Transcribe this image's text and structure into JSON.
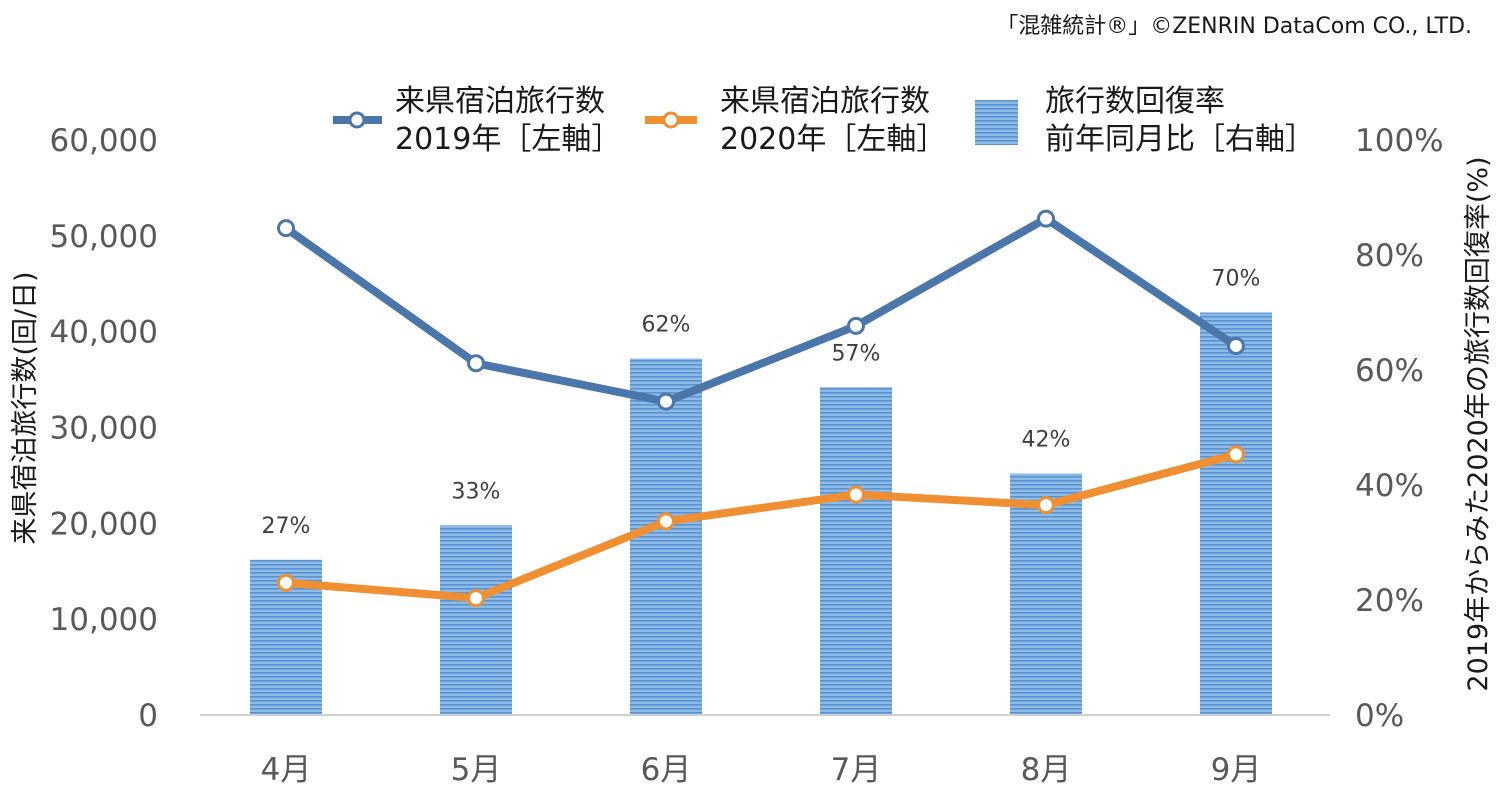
{
  "source": "「混雑統計®」©ZENRIN DataCom CO., LTD.",
  "chart_data": {
    "type": "bar+line",
    "categories": [
      "4月",
      "5月",
      "6月",
      "7月",
      "8月",
      "9月"
    ],
    "series": [
      {
        "name_lines": [
          "来県宿泊旅行数",
          "2019年［左軸］"
        ],
        "kind": "line",
        "axis": "left",
        "color": "#4a76aa",
        "values": [
          50800,
          36700,
          32700,
          40600,
          51800,
          38500
        ]
      },
      {
        "name_lines": [
          "来県宿泊旅行数",
          "2020年［左軸］"
        ],
        "kind": "line",
        "axis": "left",
        "color": "#f08f31",
        "values": [
          13800,
          12200,
          20200,
          23000,
          21900,
          27200
        ]
      },
      {
        "name_lines": [
          "旅行数回復率",
          "前年同月比［右軸］"
        ],
        "kind": "bar",
        "axis": "right",
        "color": "#6fa3d8",
        "values": [
          27,
          33,
          62,
          57,
          42,
          70
        ],
        "labels": [
          "27%",
          "33%",
          "62%",
          "57%",
          "42%",
          "70%"
        ]
      }
    ],
    "left_axis": {
      "label": "来県宿泊旅行数(回/日)",
      "ylim": [
        0,
        60000
      ],
      "ticks": [
        "0",
        "10,000",
        "20,000",
        "30,000",
        "40,000",
        "50,000",
        "60,000"
      ]
    },
    "right_axis": {
      "label": "2019年からみた2020年の旅行数回復率(%)",
      "ylim": [
        0,
        100
      ],
      "ticks": [
        "0%",
        "20%",
        "40%",
        "60%",
        "80%",
        "100%"
      ]
    },
    "grid": false,
    "legend_position": "top"
  }
}
